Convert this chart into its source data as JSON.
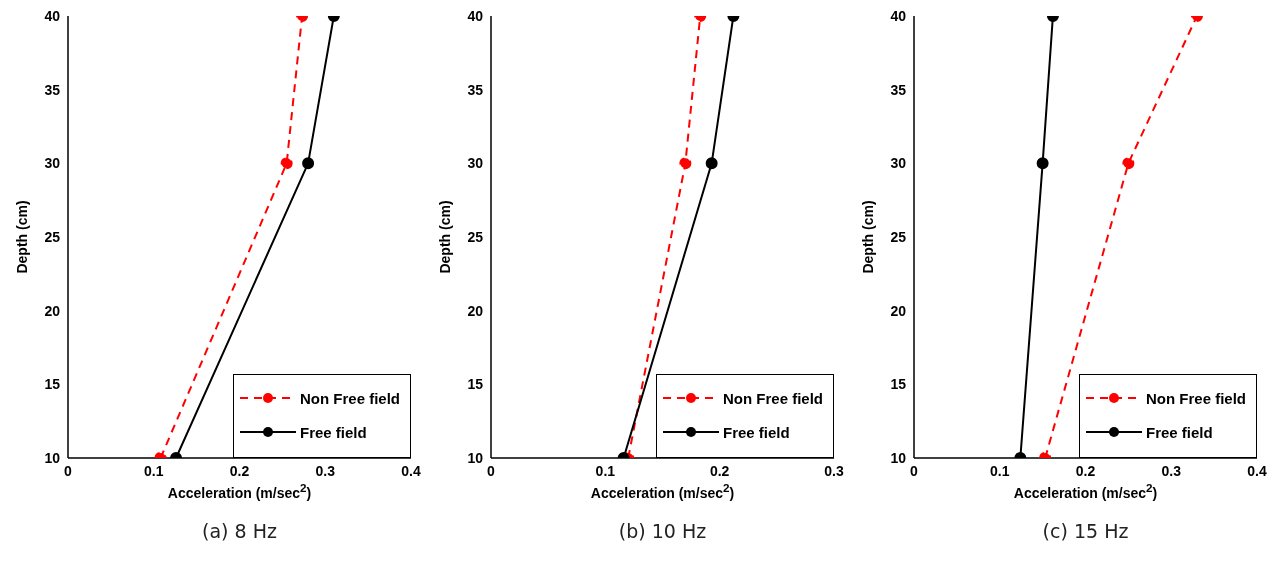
{
  "chart_data": [
    {
      "type": "line",
      "title": "(a) 8 Hz",
      "xlabel": "Acceleration (m/sec$^{2}$)",
      "ylabel": "Depth (cm)",
      "xlim": [
        0,
        0.4
      ],
      "xticks": [
        0,
        0.1,
        0.2,
        0.3,
        0.4
      ],
      "ylim": [
        10,
        40
      ],
      "yticks": [
        10,
        15,
        20,
        25,
        30,
        35,
        40
      ],
      "legend": "bottom right",
      "marker": "circle",
      "series": [
        {
          "name": "Non Free field",
          "color": "#ff0000",
          "line_style": "dashed",
          "x": [
            0.108,
            0.255,
            0.273
          ],
          "values": [
            10,
            30,
            40
          ]
        },
        {
          "name": "Free field",
          "color": "#000000",
          "line_style": "solid",
          "x": [
            0.126,
            0.28,
            0.31
          ],
          "values": [
            10,
            30,
            40
          ]
        }
      ]
    },
    {
      "type": "line",
      "title": "(b) 10 Hz",
      "xlabel": "Acceleration (m/sec$^{2}$)",
      "ylabel": "Depth (cm)",
      "xlim": [
        0,
        0.3
      ],
      "xticks": [
        0,
        0.1,
        0.2,
        0.3
      ],
      "ylim": [
        10,
        40
      ],
      "yticks": [
        10,
        15,
        20,
        25,
        30,
        35,
        40
      ],
      "legend": "bottom right",
      "marker": "circle",
      "series": [
        {
          "name": "Non Free field",
          "color": "#ff0000",
          "line_style": "dashed",
          "x": [
            0.12,
            0.17,
            0.183
          ],
          "values": [
            10,
            30,
            40
          ]
        },
        {
          "name": "Free field",
          "color": "#000000",
          "line_style": "solid",
          "x": [
            0.116,
            0.193,
            0.212
          ],
          "values": [
            10,
            30,
            40
          ]
        }
      ]
    },
    {
      "type": "line",
      "title": "(c) 15 Hz",
      "xlabel": "Acceleration (m/sec$^{2}$)",
      "ylabel": "Depth (cm)",
      "xlim": [
        0,
        0.4
      ],
      "xticks": [
        0,
        0.1,
        0.2,
        0.3,
        0.4
      ],
      "ylim": [
        10,
        40
      ],
      "yticks": [
        10,
        15,
        20,
        25,
        30,
        35,
        40
      ],
      "legend": "bottom right",
      "marker": "circle",
      "series": [
        {
          "name": "Non Free field",
          "color": "#ff0000",
          "line_style": "dashed",
          "x": [
            0.153,
            0.25,
            0.33
          ],
          "values": [
            10,
            30,
            40
          ]
        },
        {
          "name": "Free field",
          "color": "#000000",
          "line_style": "solid",
          "x": [
            0.124,
            0.15,
            0.162
          ],
          "values": [
            10,
            30,
            40
          ]
        }
      ]
    }
  ]
}
